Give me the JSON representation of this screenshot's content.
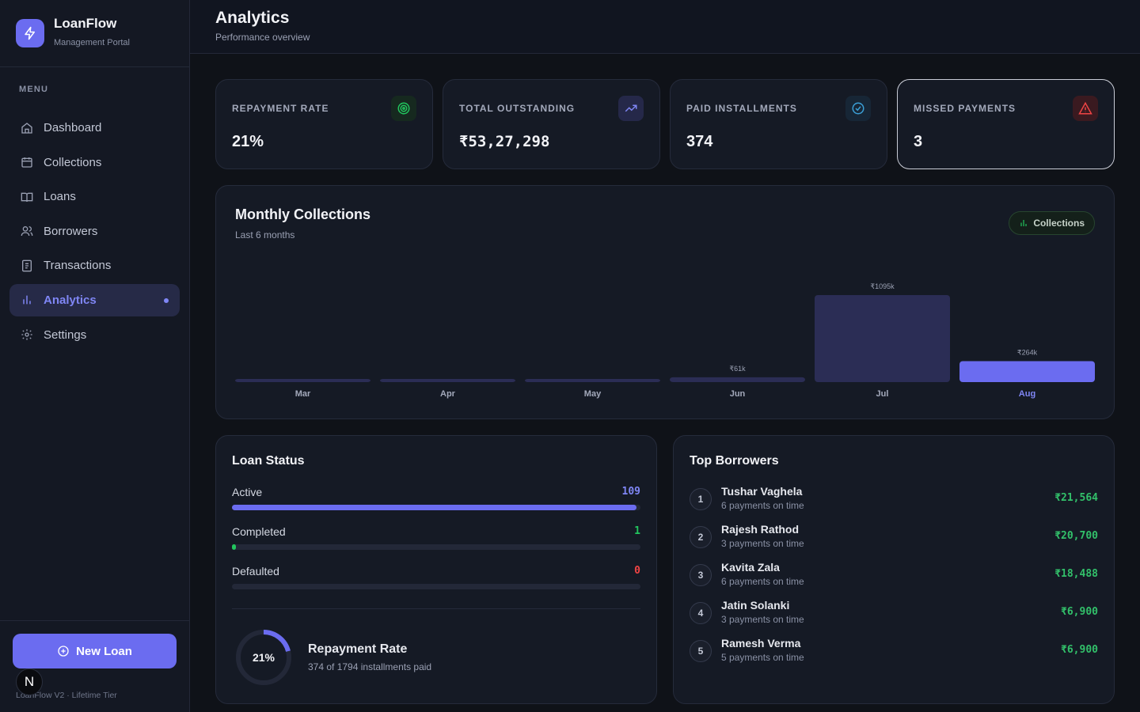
{
  "brand": {
    "name": "LoanFlow",
    "subtitle": "Management Portal"
  },
  "menu_title": "MENU",
  "nav": [
    {
      "label": "Dashboard",
      "icon": "home-icon",
      "active": false
    },
    {
      "label": "Collections",
      "icon": "calendar-icon",
      "active": false
    },
    {
      "label": "Loans",
      "icon": "book-icon",
      "active": false
    },
    {
      "label": "Borrowers",
      "icon": "users-icon",
      "active": false
    },
    {
      "label": "Transactions",
      "icon": "receipt-icon",
      "active": false
    },
    {
      "label": "Analytics",
      "icon": "bar-chart-icon",
      "active": true
    },
    {
      "label": "Settings",
      "icon": "gear-icon",
      "active": false
    }
  ],
  "new_loan_label": "New Loan",
  "avatar_letter": "N",
  "version": "LoanFlow V2 · Lifetime Tier",
  "page": {
    "title": "Analytics",
    "subtitle": "Performance overview"
  },
  "stats": [
    {
      "label": "REPAYMENT RATE",
      "value": "21%",
      "icon": "target-icon",
      "accent": "#22c55e"
    },
    {
      "label": "TOTAL OUTSTANDING",
      "value": "₹53,27,298",
      "icon": "trending-up-icon",
      "accent": "#7f86f5"
    },
    {
      "label": "PAID INSTALLMENTS",
      "value": "374",
      "icon": "check-circle-icon",
      "accent": "#3b9fd6"
    },
    {
      "label": "MISSED PAYMENTS",
      "value": "3",
      "icon": "alert-triangle-icon",
      "accent": "#ef4444"
    }
  ],
  "monthly": {
    "title": "Monthly Collections",
    "subtitle": "Last 6 months",
    "badge": "Collections"
  },
  "chart_data": {
    "type": "bar",
    "categories": [
      "Mar",
      "Apr",
      "May",
      "Jun",
      "Jul",
      "Aug"
    ],
    "values": [
      0,
      0,
      0,
      61,
      1095,
      264
    ],
    "value_labels": [
      "",
      "",
      "",
      "₹61k",
      "₹1095k",
      "₹264k"
    ],
    "highlight": "Aug",
    "unit": "₹k",
    "colors": {
      "bar": "#2b2d55",
      "highlight": "#6b6cf0"
    }
  },
  "loan_status": {
    "title": "Loan Status",
    "rows": [
      {
        "label": "Active",
        "count": "109",
        "fraction": 0.99,
        "color": "#6b6cf0"
      },
      {
        "label": "Completed",
        "count": "1",
        "fraction": 0.009,
        "color": "#22c55e"
      },
      {
        "label": "Defaulted",
        "count": "0",
        "fraction": 0,
        "color": "#ef4444"
      }
    ],
    "rate_pct": "21%",
    "rate_fraction": 0.21,
    "rate_title": "Repayment Rate",
    "rate_sub": "374 of 1794 installments paid"
  },
  "top_borrowers": {
    "title": "Top Borrowers",
    "items": [
      {
        "rank": "1",
        "name": "Tushar Vaghela",
        "sub": "6 payments on time",
        "amount": "₹21,564"
      },
      {
        "rank": "2",
        "name": "Rajesh Rathod",
        "sub": "3 payments on time",
        "amount": "₹20,700"
      },
      {
        "rank": "3",
        "name": "Kavita Zala",
        "sub": "6 payments on time",
        "amount": "₹18,488"
      },
      {
        "rank": "4",
        "name": "Jatin Solanki",
        "sub": "3 payments on time",
        "amount": "₹6,900"
      },
      {
        "rank": "5",
        "name": "Ramesh Verma",
        "sub": "5 payments on time",
        "amount": "₹6,900"
      }
    ]
  }
}
